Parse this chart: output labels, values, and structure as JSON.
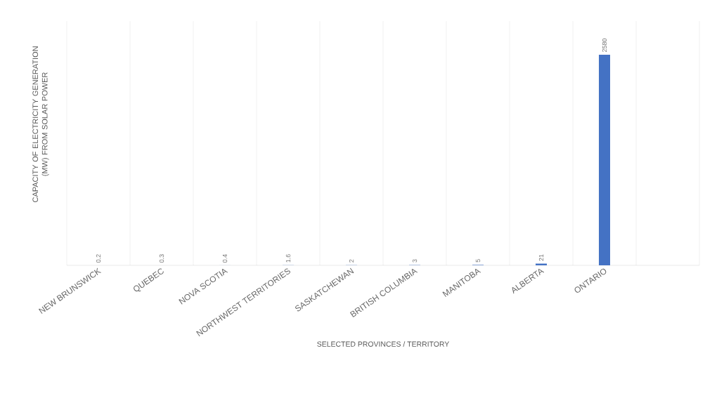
{
  "chart_data": {
    "type": "bar",
    "xlabel": "SELECTED PROVINCES / TERRITORY",
    "ylabel": "CAPACITY OF ELECTRICITY GENERATION (MW) FROM SOLAR POWER",
    "categories": [
      "NEW BRUNSWICK",
      "QUEBEC",
      "NOVA SCOTIA",
      "NORTHWEST TERRITORIES",
      "SASKATCHEWAN",
      "BRITISH COLUMBIA",
      "MANITOBA",
      "ALBERTA",
      "ONTARIO",
      null
    ],
    "values": [
      0.2,
      0.3,
      0.4,
      1.6,
      2,
      3,
      5,
      21,
      2580,
      null
    ],
    "color": "#4472c4",
    "data_labels": true,
    "grid": "x"
  }
}
